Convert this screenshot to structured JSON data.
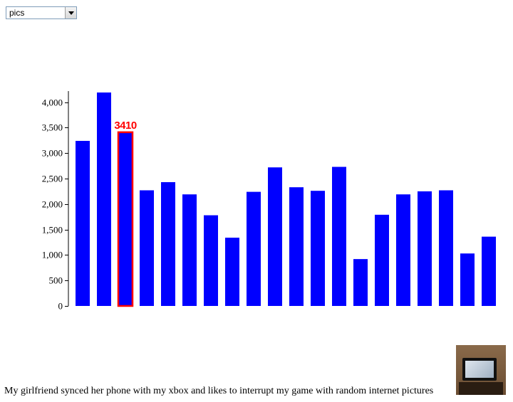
{
  "select": {
    "value": "pics",
    "options": [
      "pics"
    ]
  },
  "caption": "My girlfriend synced her phone with my xbox and likes to interrupt my game with random internet pictures",
  "thumbnail": {
    "icon": "tv-photo-thumbnail"
  },
  "chart_data": {
    "type": "bar",
    "title": "",
    "xlabel": "",
    "ylabel": "",
    "ylim": [
      0,
      4200
    ],
    "yticks": [
      0,
      500,
      1000,
      1500,
      2000,
      2500,
      3000,
      3500,
      4000
    ],
    "ytick_labels": [
      "0",
      "500",
      "1,000",
      "1,500",
      "2,000",
      "2,500",
      "3,000",
      "3,500",
      "4,000"
    ],
    "values": [
      3240,
      4190,
      3410,
      2270,
      2430,
      2190,
      1780,
      1340,
      2240,
      2720,
      2330,
      2260,
      2730,
      920,
      1790,
      2190,
      2250,
      2270,
      1030,
      1360
    ],
    "highlight_index": 2,
    "highlight_label": "3410",
    "bar_color": "#0000ff",
    "highlight_stroke": "#ff0000",
    "grid": false,
    "legend": "none"
  }
}
